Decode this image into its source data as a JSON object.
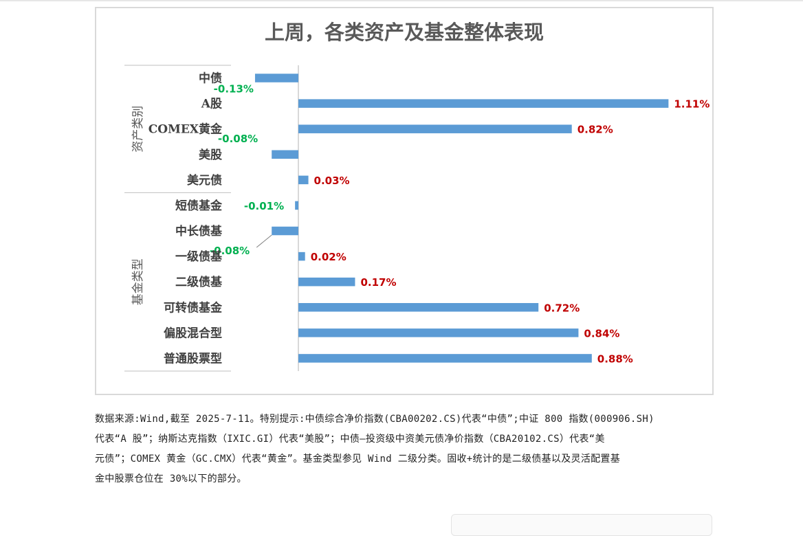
{
  "chart_data": {
    "type": "bar",
    "orientation": "horizontal",
    "title": "上周，各类资产及基金整体表现",
    "groups": [
      {
        "name": "资产类别",
        "categories": [
          "中债",
          "A股",
          "COMEX黄金",
          "美股",
          "美元债"
        ]
      },
      {
        "name": "基金类型",
        "categories": [
          "短债基金",
          "中长债基",
          "一级债基",
          "二级债基",
          "可转债基金",
          "偏股混合型",
          "普通股票型"
        ]
      }
    ],
    "categories": [
      "中债",
      "A股",
      "COMEX黄金",
      "美股",
      "美元债",
      "短债基金",
      "中长债基",
      "一级债基",
      "二级债基",
      "可转债基金",
      "偏股混合型",
      "普通股票型"
    ],
    "values": [
      -0.13,
      1.11,
      0.82,
      -0.08,
      0.03,
      -0.01,
      -0.08,
      0.02,
      0.17,
      0.72,
      0.84,
      0.88
    ],
    "value_labels": [
      "-0.13%",
      "1.11%",
      "0.82%",
      "-0.08%",
      "0.03%",
      "-0.01%",
      "-0.08%",
      "0.02%",
      "0.17%",
      "0.72%",
      "0.84%",
      "0.88%"
    ],
    "unit": "%",
    "grid": false,
    "legend": "none",
    "colors": {
      "bar": "#5b9bd5",
      "positive_label": "#c00000",
      "negative_label": "#00b050",
      "axis": "#bfbfbf"
    }
  },
  "footnote": {
    "lines": [
      "数据来源:Wind,截至 2025-7-11。特别提示:中债综合净价指数(CBA00202.CS)代表“中债”;中证 800 指数(000906.SH)",
      "代表“A 股”；纳斯达克指数（IXIC.GI）代表“美股”；中债—投资级中资美元债净价指数（CBA20102.CS）代表“美",
      "元债”；COMEX 黄金（GC.CMX）代表“黄金”。基金类型参见 Wind 二级分类。固收+统计的是二级债基以及灵活配置基",
      "金中股票仓位在 30%以下的部分。"
    ]
  }
}
